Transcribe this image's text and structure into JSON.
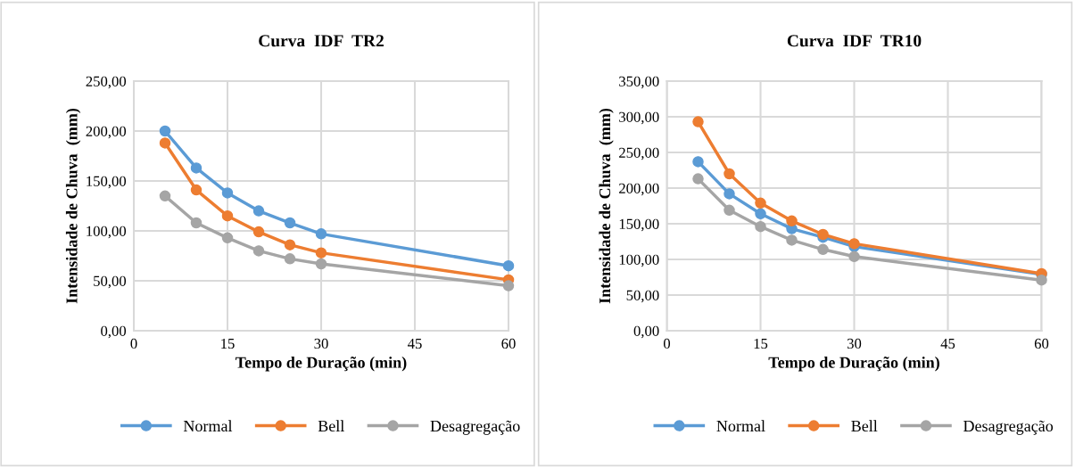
{
  "chart_data": [
    {
      "type": "line",
      "title": "Curva  IDF  TR2",
      "xlabel": "Tempo de Duração (min)",
      "ylabel": "Intensidade de Chuva  (mm)",
      "x": [
        5,
        10,
        15,
        20,
        25,
        30,
        60
      ],
      "series": [
        {
          "name": "Normal",
          "color": "#5b9bd5",
          "values": [
            200,
            163,
            138,
            120,
            108,
            97,
            65
          ]
        },
        {
          "name": "Bell",
          "color": "#ed7d31",
          "values": [
            188,
            141,
            115,
            99,
            86,
            78,
            51
          ]
        },
        {
          "name": "Desagregação",
          "color": "#a5a5a5",
          "values": [
            135,
            108,
            93,
            80,
            72,
            67,
            45
          ]
        }
      ],
      "xlim": [
        0,
        60
      ],
      "xticks": [
        0,
        15,
        30,
        45,
        60
      ],
      "ylim": [
        0,
        250
      ],
      "yticks": [
        {
          "value": 0,
          "label": "0,00"
        },
        {
          "value": 50,
          "label": "50,00"
        },
        {
          "value": 100,
          "label": "100,00"
        },
        {
          "value": 150,
          "label": "150,00"
        },
        {
          "value": 200,
          "label": "200,00"
        },
        {
          "value": 250,
          "label": "250,00"
        }
      ],
      "grid": true,
      "legend": "bottom",
      "marker": "circle",
      "line_style": "solid"
    },
    {
      "type": "line",
      "title": "Curva  IDF  TR10",
      "xlabel": "Tempo de Duração (min)",
      "ylabel": "Intensidade de Chuva  (mm)",
      "x": [
        5,
        10,
        15,
        20,
        25,
        30,
        60
      ],
      "series": [
        {
          "name": "Normal",
          "color": "#5b9bd5",
          "values": [
            237,
            192,
            164,
            143,
            131,
            118,
            79
          ]
        },
        {
          "name": "Bell",
          "color": "#ed7d31",
          "values": [
            293,
            220,
            179,
            154,
            135,
            122,
            80
          ]
        },
        {
          "name": "Desagregação",
          "color": "#a5a5a5",
          "values": [
            213,
            169,
            146,
            127,
            114,
            104,
            71
          ]
        }
      ],
      "xlim": [
        0,
        60
      ],
      "xticks": [
        0,
        15,
        30,
        45,
        60
      ],
      "ylim": [
        0,
        350
      ],
      "yticks": [
        {
          "value": 0,
          "label": "0,00"
        },
        {
          "value": 50,
          "label": "50,00"
        },
        {
          "value": 100,
          "label": "100,00"
        },
        {
          "value": 150,
          "label": "150,00"
        },
        {
          "value": 200,
          "label": "200,00"
        },
        {
          "value": 250,
          "label": "250,00"
        },
        {
          "value": 300,
          "label": "300,00"
        },
        {
          "value": 350,
          "label": "350,00"
        }
      ],
      "grid": true,
      "legend": "bottom",
      "marker": "circle",
      "line_style": "solid"
    }
  ]
}
